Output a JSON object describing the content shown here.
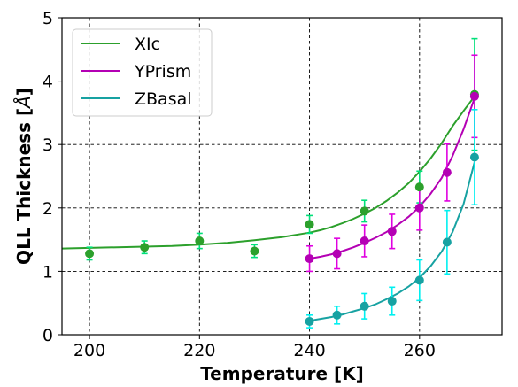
{
  "chart_data": {
    "type": "scatter",
    "xlabel": "Temperature [K]",
    "ylabel": "QLL Thickness [",
    "ylabel_unit": "Å",
    "ylabel_close": "]",
    "xlim": [
      195,
      275
    ],
    "ylim": [
      0,
      5
    ],
    "xticks": [
      200,
      220,
      240,
      260
    ],
    "yticks": [
      0,
      1,
      2,
      3,
      4,
      5
    ],
    "grid": true,
    "grid_style": "dashed",
    "legend_position": "upper-left",
    "series": [
      {
        "name": "XIc",
        "color": "#2ca02c",
        "error_color": "#00e07a",
        "x": [
          200,
          210,
          220,
          230,
          240,
          250,
          260,
          270
        ],
        "y": [
          1.28,
          1.38,
          1.48,
          1.32,
          1.74,
          1.95,
          2.33,
          3.79
        ],
        "err": [
          0.1,
          0.1,
          0.12,
          0.1,
          0.14,
          0.17,
          0.25,
          0.88
        ],
        "fit_x": [
          195,
          200,
          205,
          210,
          215,
          220,
          225,
          230,
          235,
          240,
          242,
          244,
          246,
          248,
          250,
          252,
          254,
          256,
          258,
          260,
          262,
          264,
          266,
          268,
          270
        ],
        "fit_y": [
          1.36,
          1.37,
          1.38,
          1.39,
          1.4,
          1.42,
          1.45,
          1.49,
          1.54,
          1.61,
          1.65,
          1.7,
          1.76,
          1.83,
          1.91,
          2.0,
          2.11,
          2.24,
          2.39,
          2.57,
          2.78,
          3.02,
          3.29,
          3.53,
          3.76
        ]
      },
      {
        "name": "YPrism",
        "color": "#b400b4",
        "error_color": "#e000e0",
        "x": [
          240,
          245,
          250,
          255,
          260,
          265,
          270
        ],
        "y": [
          1.2,
          1.28,
          1.48,
          1.63,
          2.0,
          2.56,
          3.76
        ],
        "err": [
          0.2,
          0.24,
          0.25,
          0.27,
          0.35,
          0.45,
          0.65
        ],
        "fit_x": [
          240,
          242,
          244,
          246,
          248,
          250,
          252,
          254,
          256,
          258,
          260,
          262,
          264,
          266,
          268,
          270
        ],
        "fit_y": [
          1.2,
          1.23,
          1.27,
          1.32,
          1.38,
          1.45,
          1.53,
          1.62,
          1.73,
          1.86,
          2.02,
          2.22,
          2.47,
          2.82,
          3.24,
          3.73
        ]
      },
      {
        "name": "ZBasal",
        "color": "#17a2a2",
        "error_color": "#00f0f0",
        "x": [
          240,
          245,
          250,
          255,
          260,
          265,
          270
        ],
        "y": [
          0.21,
          0.31,
          0.45,
          0.53,
          0.86,
          1.46,
          2.8
        ],
        "err": [
          0.1,
          0.14,
          0.2,
          0.22,
          0.32,
          0.5,
          0.75
        ],
        "fit_x": [
          240,
          242,
          244,
          246,
          248,
          250,
          252,
          254,
          256,
          258,
          260,
          262,
          264,
          266,
          268,
          270
        ],
        "fit_y": [
          0.22,
          0.25,
          0.28,
          0.32,
          0.37,
          0.42,
          0.48,
          0.56,
          0.65,
          0.76,
          0.9,
          1.08,
          1.31,
          1.62,
          2.06,
          2.72
        ]
      }
    ]
  }
}
